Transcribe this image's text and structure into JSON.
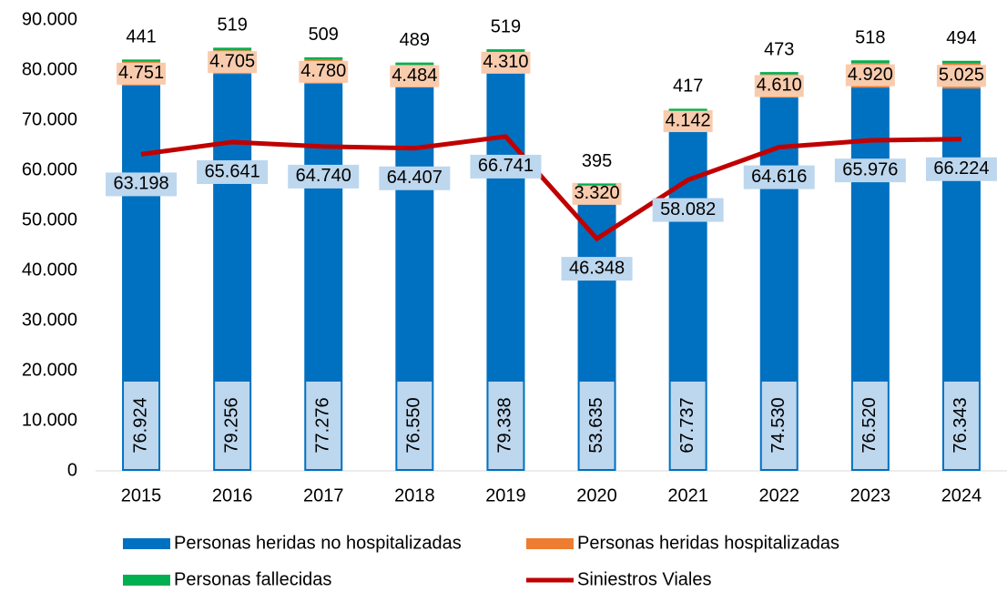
{
  "chart_data": {
    "type": "bar",
    "categories": [
      "2015",
      "2016",
      "2017",
      "2018",
      "2019",
      "2020",
      "2021",
      "2022",
      "2023",
      "2024"
    ],
    "series": [
      {
        "name": "Personas heridas no hospitalizadas",
        "color": "#0070c0",
        "stack": true,
        "values": [
          76924,
          79256,
          77276,
          76550,
          79338,
          53635,
          67737,
          74530,
          76520,
          76343
        ],
        "value_labels": [
          "76.924",
          "79.256",
          "77.276",
          "76.550",
          "79.338",
          "53.635",
          "67.737",
          "74.530",
          "76.520",
          "76.343"
        ]
      },
      {
        "name": "Personas heridas hospitalizadas",
        "color": "#ed7d31",
        "stack": true,
        "values": [
          4751,
          4705,
          4780,
          4484,
          4310,
          3320,
          4142,
          4610,
          4920,
          5025
        ],
        "value_labels": [
          "4.751",
          "4.705",
          "4.780",
          "4.484",
          "4.310",
          "3.320",
          "4.142",
          "4.610",
          "4.920",
          "5.025"
        ]
      },
      {
        "name": "Personas fallecidas",
        "color": "#00b050",
        "stack": true,
        "values": [
          441,
          519,
          509,
          489,
          519,
          395,
          417,
          473,
          518,
          494
        ]
      },
      {
        "name": "Siniestros Viales",
        "color": "#c00000",
        "type": "line",
        "values": [
          63198,
          65641,
          64740,
          64407,
          66741,
          46348,
          58082,
          64616,
          65976,
          66224
        ],
        "value_labels": [
          "63.198",
          "65.641",
          "64.740",
          "64.407",
          "66.741",
          "46.348",
          "58.082",
          "64.616",
          "65.976",
          "66.224"
        ]
      }
    ],
    "ylim": [
      0,
      90000
    ],
    "yticks": [
      0,
      {
        "value": 10000,
        "label": "10.000"
      },
      {
        "value": 20000,
        "label": "20.000"
      },
      {
        "value": 30000,
        "label": "30.000"
      },
      {
        "value": 40000,
        "label": "40.000"
      },
      {
        "value": 50000,
        "label": "50.000"
      },
      {
        "value": 60000,
        "label": "60.000"
      },
      {
        "value": 70000,
        "label": "70.000"
      },
      {
        "value": 80000,
        "label": "80.000"
      },
      {
        "value": 90000,
        "label": "90.000"
      }
    ],
    "legend": "bottom"
  }
}
